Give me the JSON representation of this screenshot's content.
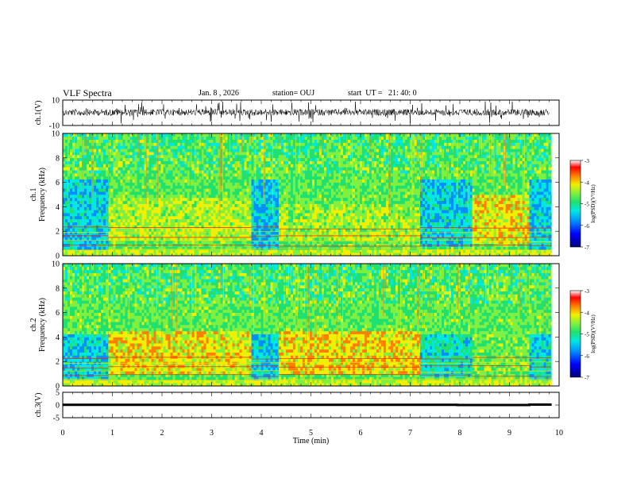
{
  "header": {
    "title": "VLF Spectra",
    "date": "Jan. 8 , 2026",
    "station": "station= OUJ",
    "start": "start  UT =   21: 40: 0"
  },
  "colors": {
    "stops": [
      "#00007a",
      "#0000ff",
      "#0090ff",
      "#00e8e0",
      "#20e070",
      "#80f040",
      "#f0f000",
      "#ff8000",
      "#ff0000",
      "#ffffff"
    ],
    "background": "#ffffff"
  },
  "chart_data": [
    {
      "type": "line",
      "name": "ch1-waveform",
      "ylabel": "ch.1(V)",
      "ylim": [
        -10,
        10
      ],
      "yticks": [
        "10",
        "-10"
      ],
      "xlim": [
        0,
        10
      ]
    },
    {
      "type": "heatmap",
      "name": "ch1-spectrogram",
      "ylabel": "ch.1\nFrequency (kHz)",
      "ylabel_lines": [
        "ch.1",
        "Frequency (kHz)"
      ],
      "ylim": [
        0,
        10
      ],
      "yticks": [
        "0",
        "2",
        "4",
        "6",
        "8",
        "10"
      ],
      "xlim": [
        0,
        10
      ],
      "colorbar": {
        "label": "log(PSD)(V²/Hz)",
        "range": [
          -7,
          -3
        ],
        "ticks": [
          "-3",
          "-4",
          "-5",
          "-6",
          "-7"
        ]
      },
      "segments": [
        {
          "start": 0.0,
          "end": 0.92,
          "level": -5.6,
          "low_band": [
            0.5,
            6.0
          ]
        },
        {
          "start": 0.92,
          "end": 3.8,
          "level": -4.3,
          "low_band": [
            1.2,
            4.6
          ]
        },
        {
          "start": 3.8,
          "end": 4.35,
          "level": -5.7,
          "low_band": [
            0.5,
            6.0
          ]
        },
        {
          "start": 4.35,
          "end": 7.2,
          "level": -4.4,
          "low_band": [
            1.2,
            4.2
          ]
        },
        {
          "start": 7.2,
          "end": 8.25,
          "level": -5.6,
          "low_band": [
            0.6,
            6.0
          ]
        },
        {
          "start": 8.25,
          "end": 9.4,
          "level": -4.0,
          "low_band": [
            1.0,
            4.8
          ]
        },
        {
          "start": 9.4,
          "end": 9.85,
          "level": -5.6,
          "low_band": [
            0.5,
            6.0
          ]
        }
      ]
    },
    {
      "type": "heatmap",
      "name": "ch2-spectrogram",
      "ylabel": "ch.2\nFrequency (kHz)",
      "ylabel_lines": [
        "ch.2",
        "Frequency (kHz)"
      ],
      "ylim": [
        0,
        10
      ],
      "yticks": [
        "0",
        "2",
        "4",
        "6",
        "8",
        "10"
      ],
      "xlim": [
        0,
        10
      ],
      "colorbar": {
        "label": "log(PSD)(V²/Hz)",
        "range": [
          -7,
          -3
        ],
        "ticks": [
          "-3",
          "-4",
          "-5",
          "-6",
          "-7"
        ]
      },
      "segments": [
        {
          "start": 0.0,
          "end": 0.92,
          "level": -5.5,
          "low_band": [
            0.5,
            4.0
          ]
        },
        {
          "start": 0.92,
          "end": 3.8,
          "level": -4.0,
          "low_band": [
            1.0,
            4.4
          ]
        },
        {
          "start": 3.8,
          "end": 4.35,
          "level": -5.6,
          "low_band": [
            0.5,
            4.0
          ]
        },
        {
          "start": 4.35,
          "end": 7.2,
          "level": -3.9,
          "low_band": [
            1.0,
            4.3
          ]
        },
        {
          "start": 7.2,
          "end": 8.25,
          "level": -5.4,
          "low_band": [
            0.6,
            4.0
          ]
        },
        {
          "start": 8.25,
          "end": 9.4,
          "level": -4.6,
          "low_band": [
            1.0,
            4.2
          ]
        },
        {
          "start": 9.4,
          "end": 9.85,
          "level": -5.5,
          "low_band": [
            0.5,
            4.0
          ]
        }
      ]
    },
    {
      "type": "line",
      "name": "ch3-level",
      "ylabel": "ch.3(V)",
      "ylim": [
        -5,
        5
      ],
      "yticks": [
        "5",
        "0",
        "-5"
      ],
      "xlim": [
        0,
        10
      ],
      "x": [
        0,
        7.95,
        7.95,
        9.4,
        9.4,
        9.85
      ],
      "y": [
        0.1,
        0.1,
        0.0,
        0.0,
        0.15,
        0.15
      ],
      "xlabel": "Time (min)",
      "xticks": [
        "0",
        "1",
        "2",
        "3",
        "4",
        "5",
        "6",
        "7",
        "8",
        "9",
        "10"
      ]
    }
  ]
}
